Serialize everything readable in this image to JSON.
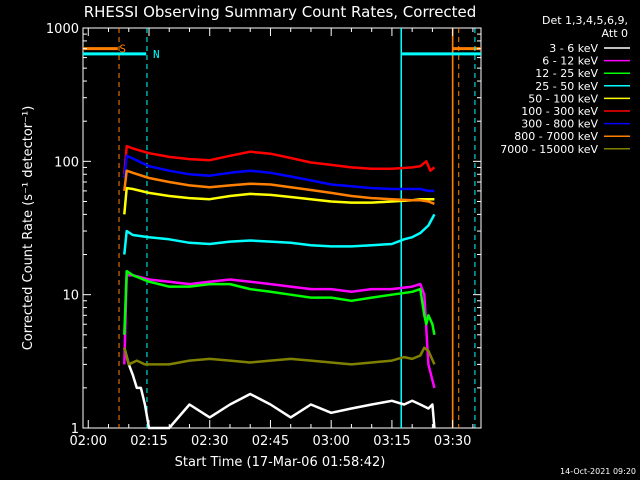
{
  "chart_data": {
    "type": "line",
    "title": "RHESSI Observing Summary Count Rates, Corrected",
    "xlabel": "Start Time (17-Mar-06 01:58:42)",
    "ylabel": "Corrected Count Rate (s⁻¹ detector⁻¹)",
    "x_range_min": [
      118.7,
      217
    ],
    "x_ticks": [
      {
        "v": 120,
        "label": "02:00"
      },
      {
        "v": 135,
        "label": "02:15"
      },
      {
        "v": 150,
        "label": "02:30"
      },
      {
        "v": 165,
        "label": "02:45"
      },
      {
        "v": 180,
        "label": "03:00"
      },
      {
        "v": 195,
        "label": "03:15"
      },
      {
        "v": 210,
        "label": "03:30"
      }
    ],
    "ylim": [
      1,
      1000
    ],
    "yscale": "log",
    "y_ticks": [
      {
        "v": 1,
        "label": "1"
      },
      {
        "v": 10,
        "label": "10"
      },
      {
        "v": 100,
        "label": "100"
      },
      {
        "v": 1000,
        "label": "1000"
      }
    ],
    "legend_header": [
      "Det 1,3,4,5,6,9,",
      "Att 0"
    ],
    "legend_position": "right",
    "series": [
      {
        "name": "3 - 6 keV",
        "color": "#ffffff",
        "x": [
          128.9,
          130,
          131,
          132,
          133,
          134,
          135,
          137,
          140,
          145,
          150,
          155,
          160,
          165,
          170,
          175,
          180,
          185,
          190,
          195,
          198,
          200,
          202,
          204,
          205,
          205.5
        ],
        "y": [
          4,
          3,
          2.5,
          2,
          2,
          1.5,
          1,
          1,
          1,
          1.5,
          1.2,
          1.5,
          1.8,
          1.5,
          1.2,
          1.5,
          1.3,
          1.4,
          1.5,
          1.6,
          1.5,
          1.6,
          1.5,
          1.4,
          1.5,
          1
        ]
      },
      {
        "name": "6 - 12 keV",
        "color": "#ff00ff",
        "x": [
          128.9,
          129.5,
          131,
          135,
          140,
          145,
          150,
          155,
          160,
          165,
          170,
          175,
          180,
          185,
          190,
          195,
          200,
          202,
          203,
          204,
          205.5
        ],
        "y": [
          3,
          14,
          14,
          13,
          12.5,
          12,
          12.5,
          13,
          12.5,
          12,
          11.5,
          11,
          11,
          10.5,
          11,
          11,
          11.5,
          12,
          10,
          3,
          2
        ]
      },
      {
        "name": "12 - 25 keV",
        "color": "#00ff00",
        "x": [
          128.9,
          129.5,
          131,
          135,
          140,
          145,
          150,
          155,
          160,
          165,
          170,
          175,
          180,
          185,
          190,
          195,
          200,
          202,
          203,
          203.5,
          204,
          205,
          205.5
        ],
        "y": [
          5,
          15,
          14,
          12.5,
          11.5,
          11.5,
          12,
          12,
          11,
          10.5,
          10,
          9.5,
          9.5,
          9,
          9.5,
          10,
          10.5,
          11,
          7,
          6,
          7,
          6,
          5
        ]
      },
      {
        "name": "25 - 50 keV",
        "color": "#00ffff",
        "x": [
          128.9,
          129.5,
          131,
          135,
          140,
          145,
          150,
          155,
          160,
          165,
          170,
          175,
          180,
          185,
          190,
          195,
          198,
          200,
          202,
          204,
          205.5
        ],
        "y": [
          20,
          30,
          28,
          27,
          26,
          24.5,
          24,
          25,
          25.5,
          25,
          24.5,
          23.5,
          23,
          23,
          23.5,
          24,
          26,
          27,
          29,
          33,
          40
        ]
      },
      {
        "name": "50 - 100 keV",
        "color": "#ffff00",
        "x": [
          128.9,
          129.5,
          131,
          135,
          140,
          145,
          150,
          155,
          160,
          165,
          170,
          175,
          180,
          185,
          190,
          195,
          200,
          202,
          204,
          205.5
        ],
        "y": [
          40,
          63,
          62,
          58,
          55,
          53,
          52,
          55,
          57,
          56,
          54,
          52,
          50,
          49,
          49,
          50,
          51,
          52,
          52,
          52
        ]
      },
      {
        "name": "100 - 300 keV",
        "color": "#ff0000",
        "x": [
          128.9,
          129.5,
          131,
          135,
          140,
          145,
          150,
          155,
          160,
          165,
          170,
          175,
          180,
          185,
          190,
          195,
          200,
          202,
          203.5,
          204.5,
          205.5
        ],
        "y": [
          80,
          130,
          125,
          115,
          108,
          104,
          102,
          110,
          118,
          114,
          106,
          98,
          94,
          90,
          88,
          88,
          90,
          92,
          100,
          85,
          90
        ]
      },
      {
        "name": "300 - 800 keV",
        "color": "#0000ff",
        "x": [
          128.9,
          129.5,
          131,
          135,
          140,
          145,
          150,
          155,
          160,
          165,
          170,
          175,
          180,
          185,
          190,
          195,
          200,
          202,
          204,
          205.5
        ],
        "y": [
          75,
          110,
          105,
          92,
          85,
          80,
          78,
          82,
          85,
          82,
          77,
          72,
          67,
          65,
          63,
          62,
          62,
          62,
          60,
          60
        ]
      },
      {
        "name": "800 - 7000 keV",
        "color": "#ff8000",
        "x": [
          128.9,
          129.5,
          131,
          135,
          140,
          145,
          150,
          155,
          160,
          165,
          170,
          175,
          180,
          185,
          190,
          195,
          200,
          202,
          204,
          205.5
        ],
        "y": [
          60,
          85,
          82,
          75,
          70,
          66,
          64,
          66,
          68,
          67,
          64,
          61,
          58,
          55,
          53,
          52,
          51,
          51,
          50,
          48
        ]
      },
      {
        "name": "7000 - 15000 keV",
        "color": "#808000",
        "x": [
          128.9,
          130,
          132,
          134,
          136,
          138,
          140,
          145,
          150,
          155,
          160,
          165,
          170,
          175,
          180,
          185,
          190,
          195,
          198,
          200,
          202,
          203,
          204,
          205.5
        ],
        "y": [
          4,
          3,
          3.2,
          3,
          3,
          3,
          3,
          3.2,
          3.3,
          3.2,
          3.1,
          3.2,
          3.3,
          3.2,
          3.1,
          3,
          3.1,
          3.2,
          3.4,
          3.3,
          3.5,
          4,
          3.8,
          3
        ]
      }
    ],
    "markers": [
      {
        "label": "S",
        "color": "#ff8000",
        "dashed_x": [
          127.6,
          211.5
        ],
        "solid_x": [
          210,
          210
        ],
        "bar_y": 700,
        "bar_ranges": [
          [
            118.7,
            127.3
          ],
          [
            210.2,
            217
          ]
        ],
        "label_x": 128.5
      },
      {
        "label": "N",
        "color": "#00ffff",
        "dashed_x": [
          134.5,
          215.5
        ],
        "solid_x": [
          197.3,
          197.3
        ],
        "bar_y": 640,
        "bar_ranges": [
          [
            118.7,
            134.3
          ],
          [
            197.5,
            217
          ]
        ],
        "label_x": 136.8
      }
    ],
    "footer": "14-Oct-2021 09:20"
  }
}
